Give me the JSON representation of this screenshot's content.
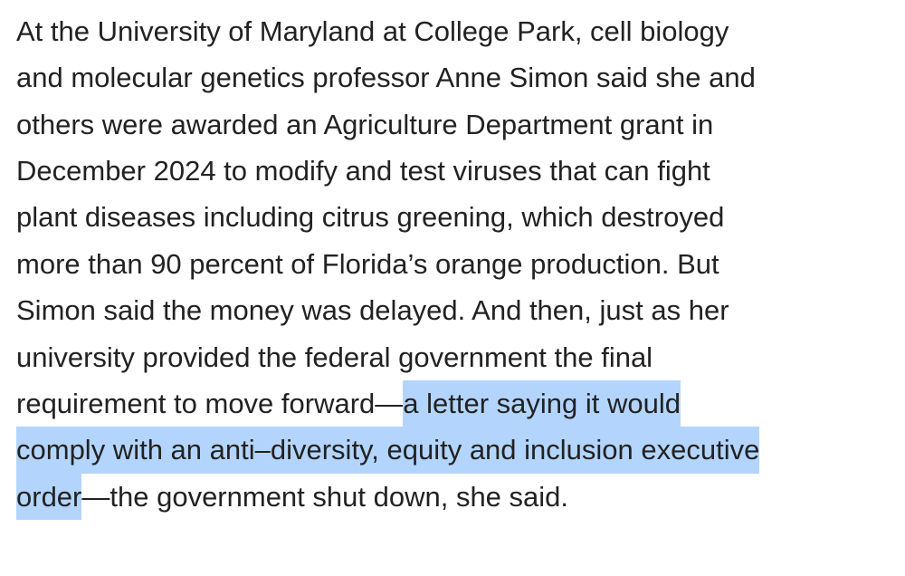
{
  "paragraph": {
    "lines": [
      [
        {
          "text": "At the University of Maryland at College Park, cell biology",
          "selected": false
        }
      ],
      [
        {
          "text": "and molecular genetics professor Anne Simon said she and",
          "selected": false
        }
      ],
      [
        {
          "text": "others were awarded an Agriculture Department grant in",
          "selected": false
        }
      ],
      [
        {
          "text": "December 2024 to modify and test viruses that can fight",
          "selected": false
        }
      ],
      [
        {
          "text": "plant diseases including citrus greening, which destroyed",
          "selected": false
        }
      ],
      [
        {
          "text": "more than 90 percent of Florida’s orange production. But",
          "selected": false
        }
      ],
      [
        {
          "text": "Simon said the money was delayed. And then, just as her",
          "selected": false
        }
      ],
      [
        {
          "text": "university provided the federal government the final",
          "selected": false
        }
      ],
      [
        {
          "text": "requirement to move forward—",
          "selected": false
        },
        {
          "text": "a letter saying it would",
          "selected": true
        }
      ],
      [
        {
          "text": "comply with an anti–diversity, equity and inclusion executive",
          "selected": true
        }
      ],
      [
        {
          "text": "order",
          "selected": true
        },
        {
          "text": "—the government shut down, she said.",
          "selected": false
        }
      ]
    ]
  }
}
